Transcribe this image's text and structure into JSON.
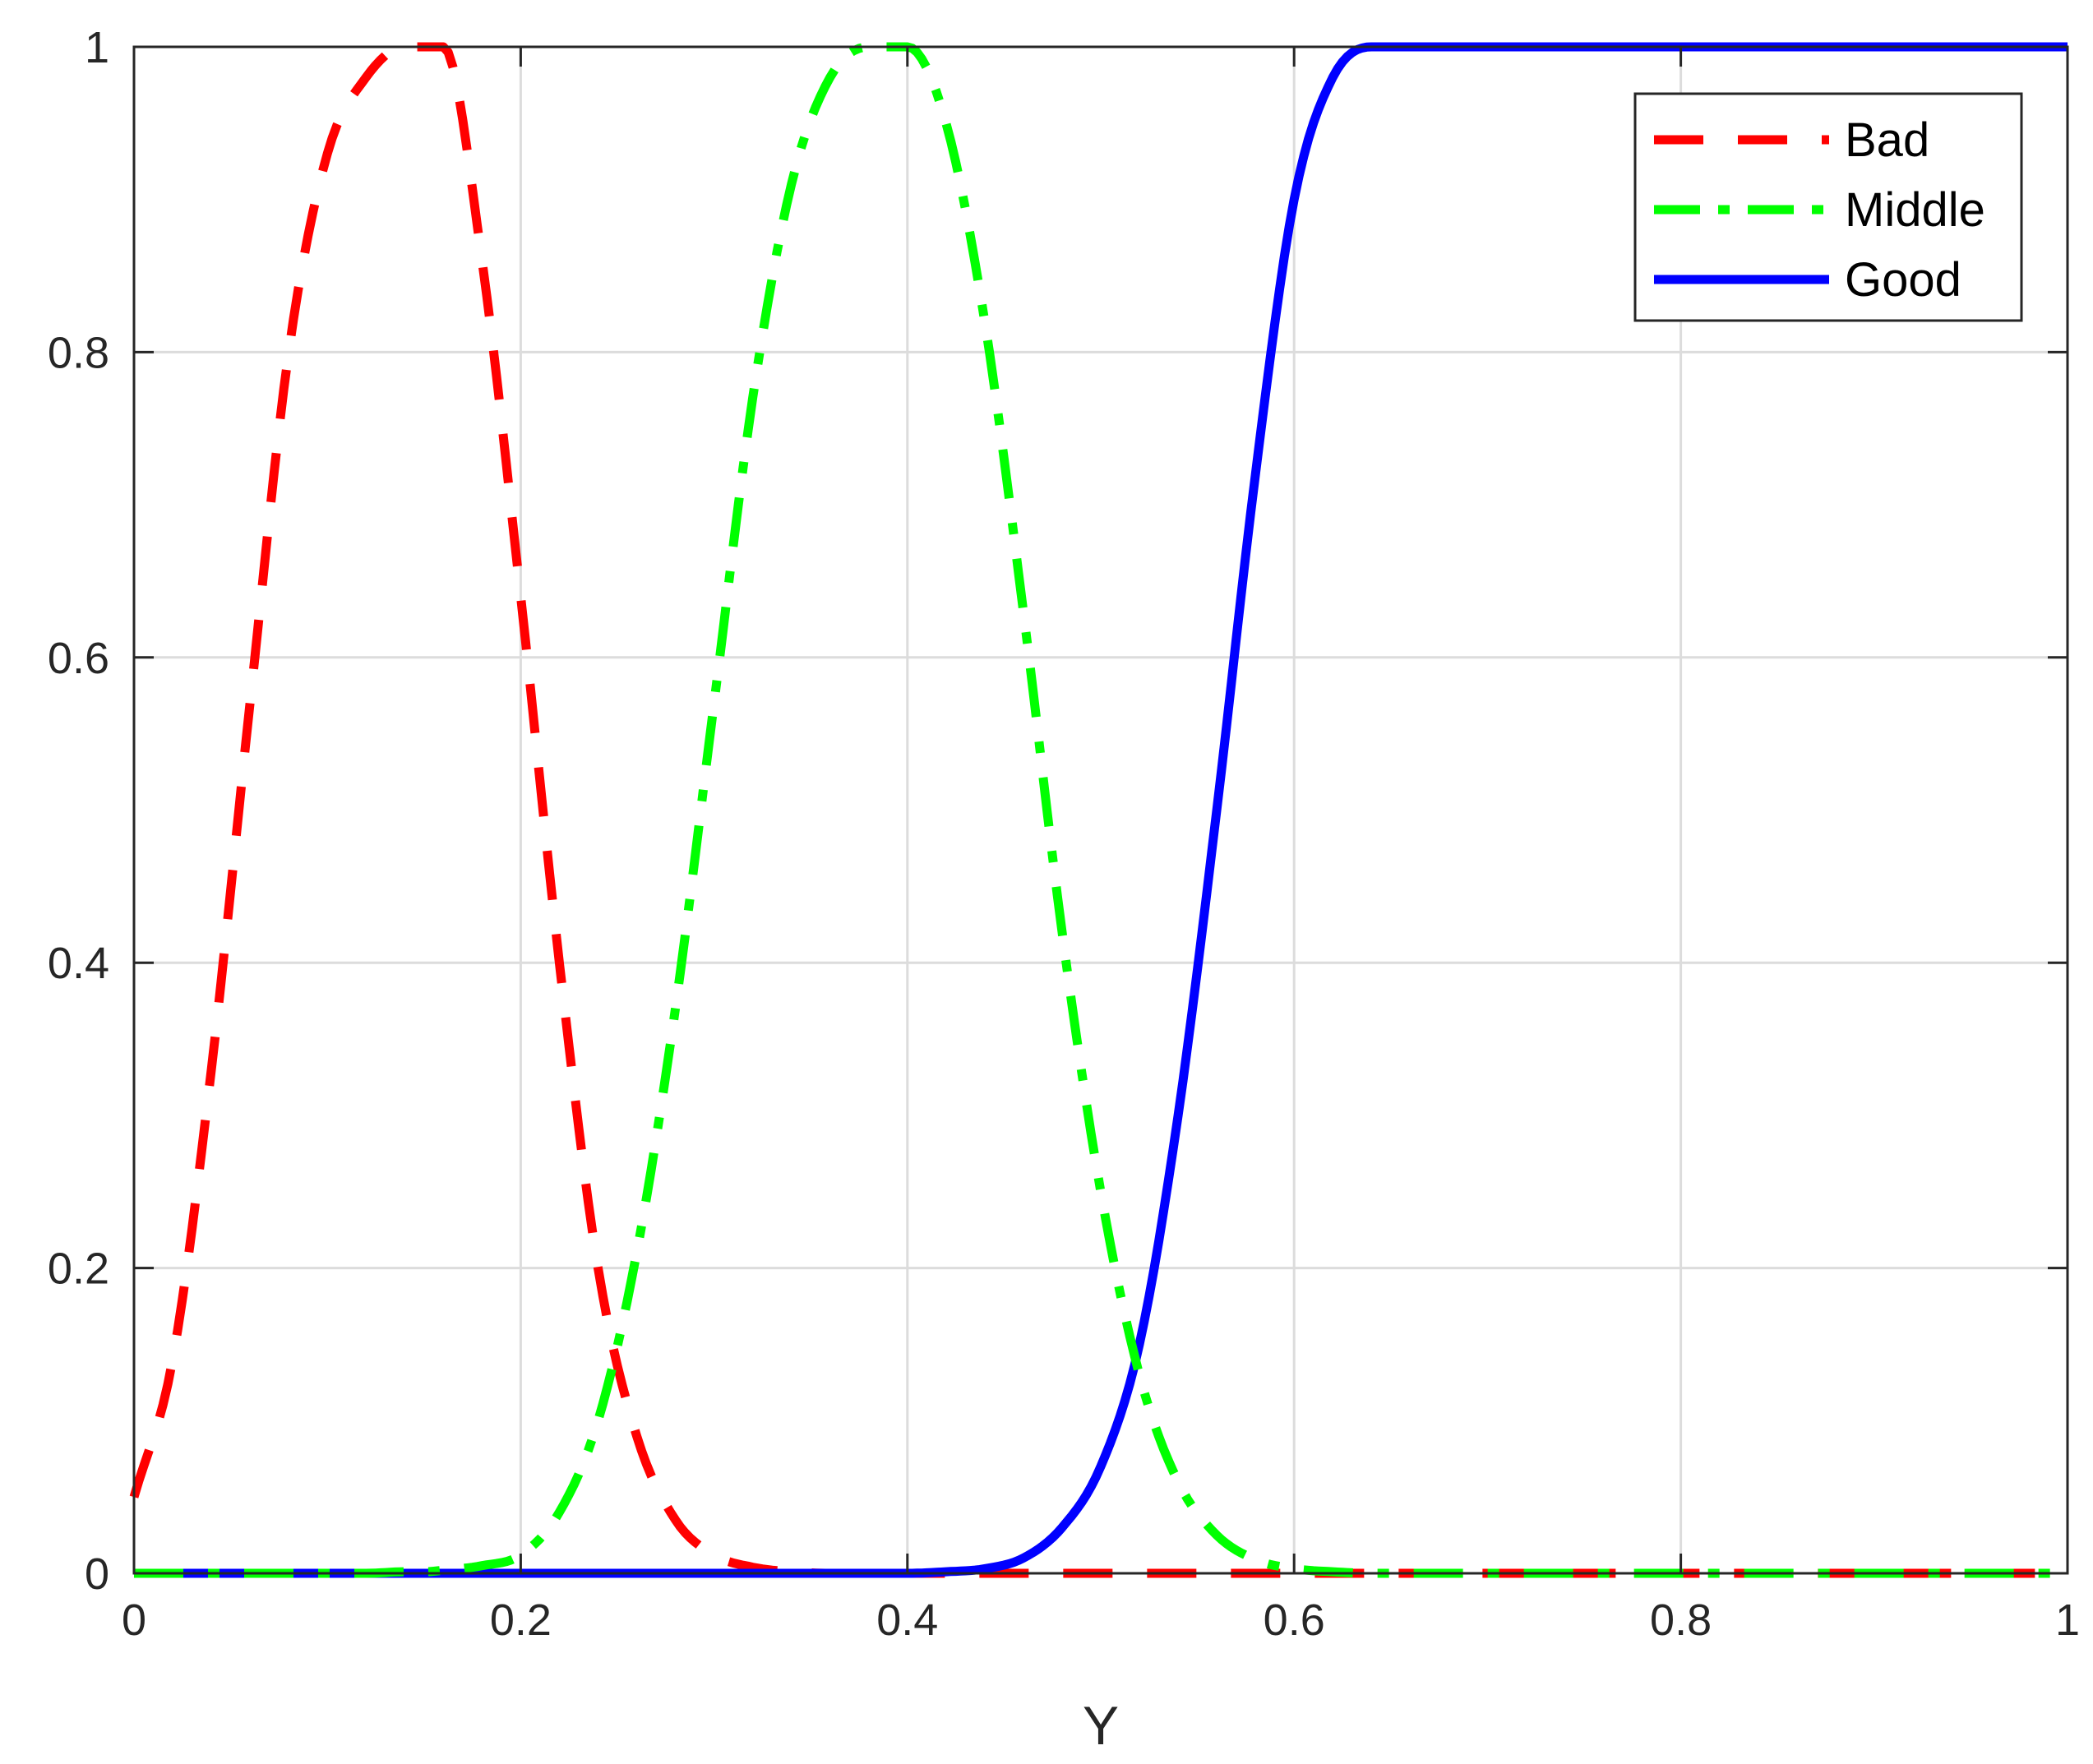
{
  "chart_data": {
    "type": "line",
    "xlabel": "Y",
    "ylabel": "",
    "xlim": [
      0,
      1
    ],
    "ylim": [
      0,
      1
    ],
    "xticks": [
      0,
      0.2,
      0.4,
      0.6,
      0.8,
      1
    ],
    "xtick_labels": [
      "0",
      "0.2",
      "0.4",
      "0.6",
      "0.8",
      "1"
    ],
    "yticks": [
      0,
      0.2,
      0.4,
      0.6,
      0.8,
      1
    ],
    "ytick_labels": [
      "0",
      "0.2",
      "0.4",
      "0.6",
      "0.8",
      "1"
    ],
    "grid": true,
    "legend_position": "top-right",
    "x": [
      0,
      0.02,
      0.04,
      0.06,
      0.08,
      0.1,
      0.12,
      0.14,
      0.15,
      0.16,
      0.18,
      0.2,
      0.22,
      0.24,
      0.26,
      0.28,
      0.3,
      0.32,
      0.34,
      0.36,
      0.38,
      0.4,
      0.42,
      0.44,
      0.46,
      0.48,
      0.5,
      0.52,
      0.54,
      0.56,
      0.58,
      0.6,
      0.62,
      0.64,
      0.66,
      0.68,
      0.7,
      0.75,
      0.8,
      0.85,
      0.9,
      0.95,
      1
    ],
    "series": [
      {
        "name": "Bad",
        "color": "#ff0000",
        "style": "dashed",
        "values": [
          0.05,
          0.14,
          0.33,
          0.57,
          0.8,
          0.93,
          0.98,
          1.0,
          1.0,
          1.0,
          0.86,
          0.64,
          0.4,
          0.2,
          0.09,
          0.035,
          0.012,
          0.004,
          0.001,
          0.0,
          0.0,
          0.0,
          0.0,
          0.0,
          0.0,
          0.0,
          0.0,
          0.0,
          0.0,
          0.0,
          0.0,
          0.0,
          0.0,
          0.0,
          0.0,
          0.0,
          0.0,
          0.0,
          0.0,
          0.0,
          0.0,
          0.0,
          0.0
        ]
      },
      {
        "name": "Middle",
        "color": "#00ff00",
        "style": "dashdot",
        "values": [
          0.0,
          0.0,
          0.0,
          0.0,
          0.0,
          0.0,
          0.0,
          0.001,
          0.001,
          0.002,
          0.005,
          0.012,
          0.04,
          0.1,
          0.21,
          0.37,
          0.57,
          0.77,
          0.91,
          0.98,
          1.0,
          1.0,
          0.95,
          0.82,
          0.63,
          0.42,
          0.25,
          0.13,
          0.06,
          0.025,
          0.009,
          0.003,
          0.001,
          0.0,
          0.0,
          0.0,
          0.0,
          0.0,
          0.0,
          0.0,
          0.0,
          0.0,
          0.0
        ]
      },
      {
        "name": "Good",
        "color": "#0000ff",
        "style": "solid",
        "values": [
          0.0,
          0.0,
          0.0,
          0.0,
          0.0,
          0.0,
          0.0,
          0.0,
          0.0,
          0.0,
          0.0,
          0.0,
          0.0,
          0.0,
          0.0,
          0.0,
          0.0,
          0.0,
          0.0,
          0.0,
          0.0,
          0.0,
          0.001,
          0.003,
          0.01,
          0.03,
          0.07,
          0.15,
          0.3,
          0.5,
          0.72,
          0.9,
          0.98,
          1.0,
          1.0,
          1.0,
          1.0,
          1.0,
          1.0,
          1.0,
          1.0,
          1.0,
          1.0
        ]
      }
    ]
  }
}
